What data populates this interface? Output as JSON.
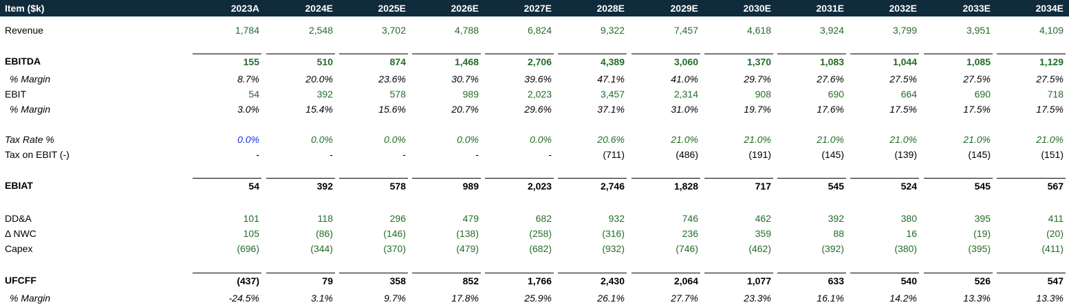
{
  "colors": {
    "header_bg": "#0f2b3c",
    "header_text": "#ffffff",
    "input_green": "#226c26",
    "hardcode_blue": "#1c2fe0",
    "text_black": "#000000"
  },
  "header": {
    "label": "Item ($k)",
    "years": [
      "2023A",
      "2024E",
      "2025E",
      "2026E",
      "2027E",
      "2028E",
      "2029E",
      "2030E",
      "2031E",
      "2032E",
      "2033E",
      "2034E"
    ]
  },
  "rows": {
    "revenue": {
      "label": "Revenue",
      "values": [
        "1,784",
        "2,548",
        "3,702",
        "4,788",
        "6,824",
        "9,322",
        "7,457",
        "4,618",
        "3,924",
        "3,799",
        "3,951",
        "4,109"
      ]
    },
    "ebitda": {
      "label": "EBITDA",
      "values": [
        "155",
        "510",
        "874",
        "1,468",
        "2,706",
        "4,389",
        "3,060",
        "1,370",
        "1,083",
        "1,044",
        "1,085",
        "1,129"
      ]
    },
    "ebitda_margin": {
      "label": "% Margin",
      "values": [
        "8.7%",
        "20.0%",
        "23.6%",
        "30.7%",
        "39.6%",
        "47.1%",
        "41.0%",
        "29.7%",
        "27.6%",
        "27.5%",
        "27.5%",
        "27.5%"
      ]
    },
    "ebit": {
      "label": "EBIT",
      "values": [
        "54",
        "392",
        "578",
        "989",
        "2,023",
        "3,457",
        "2,314",
        "908",
        "690",
        "664",
        "690",
        "718"
      ]
    },
    "ebit_margin": {
      "label": "% Margin",
      "values": [
        "3.0%",
        "15.4%",
        "15.6%",
        "20.7%",
        "29.6%",
        "37.1%",
        "31.0%",
        "19.7%",
        "17.6%",
        "17.5%",
        "17.5%",
        "17.5%"
      ]
    },
    "tax_rate": {
      "label": "Tax Rate %",
      "values": [
        "0.0%",
        "0.0%",
        "0.0%",
        "0.0%",
        "0.0%",
        "20.6%",
        "21.0%",
        "21.0%",
        "21.0%",
        "21.0%",
        "21.0%",
        "21.0%"
      ]
    },
    "tax_on_ebit": {
      "label": "Tax on EBIT (-)",
      "values": [
        "-",
        "-",
        "-",
        "-",
        "-",
        "(711)",
        "(486)",
        "(191)",
        "(145)",
        "(139)",
        "(145)",
        "(151)"
      ]
    },
    "ebiat": {
      "label": "EBIAT",
      "values": [
        "54",
        "392",
        "578",
        "989",
        "2,023",
        "2,746",
        "1,828",
        "717",
        "545",
        "524",
        "545",
        "567"
      ]
    },
    "dda": {
      "label": "DD&A",
      "values": [
        "101",
        "118",
        "296",
        "479",
        "682",
        "932",
        "746",
        "462",
        "392",
        "380",
        "395",
        "411"
      ]
    },
    "nwc": {
      "label": "Δ NWC",
      "values": [
        "105",
        "(86)",
        "(146)",
        "(138)",
        "(258)",
        "(316)",
        "236",
        "359",
        "88",
        "16",
        "(19)",
        "(20)"
      ]
    },
    "capex": {
      "label": "Capex",
      "values": [
        "(696)",
        "(344)",
        "(370)",
        "(479)",
        "(682)",
        "(932)",
        "(746)",
        "(462)",
        "(392)",
        "(380)",
        "(395)",
        "(411)"
      ]
    },
    "ufcff": {
      "label": "UFCFF",
      "values": [
        "(437)",
        "79",
        "358",
        "852",
        "1,766",
        "2,430",
        "2,064",
        "1,077",
        "633",
        "540",
        "526",
        "547"
      ]
    },
    "ufcff_margin": {
      "label": "% Margin",
      "values": [
        "-24.5%",
        "3.1%",
        "9.7%",
        "17.8%",
        "25.9%",
        "26.1%",
        "27.7%",
        "23.3%",
        "16.1%",
        "14.2%",
        "13.3%",
        "13.3%"
      ]
    }
  }
}
